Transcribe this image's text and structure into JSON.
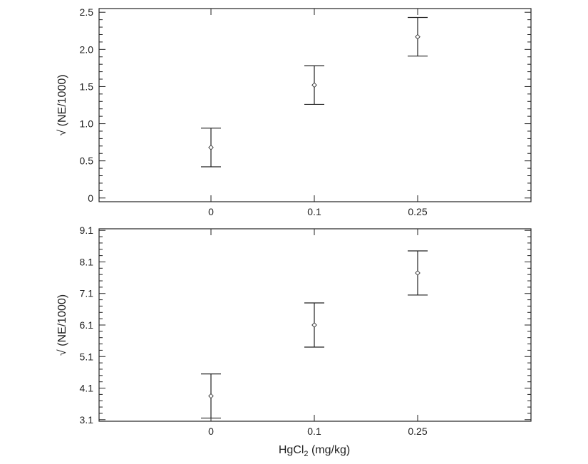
{
  "chart_data": [
    {
      "type": "scatter",
      "error_bars": true,
      "title": "",
      "xlabel": "",
      "ylabel": "√ (NE/1000)",
      "categories": [
        "0",
        "0.1",
        "0.25"
      ],
      "ylim": [
        -0.05,
        2.55
      ],
      "yticks": [
        "0",
        "0.5",
        "1.0",
        "1.5",
        "2.0",
        "2.5"
      ],
      "ytick_values": [
        0,
        0.5,
        1.0,
        1.5,
        2.0,
        2.5
      ],
      "series": [
        {
          "values": [
            0.68,
            1.52,
            2.17
          ],
          "lower": [
            0.42,
            1.26,
            1.91
          ],
          "upper": [
            0.94,
            1.78,
            2.43
          ]
        }
      ],
      "grid": false,
      "legend": "none"
    },
    {
      "type": "scatter",
      "error_bars": true,
      "title": "",
      "xlabel": "",
      "ylabel": "√ (NE/1000)",
      "categories": [
        "0",
        "0.1",
        "0.25"
      ],
      "ylim": [
        3.05,
        9.15
      ],
      "yticks": [
        "3.1",
        "4.1",
        "5.1",
        "6.1",
        "7.1",
        "8.1",
        "9.1"
      ],
      "ytick_values": [
        3.1,
        4.1,
        5.1,
        6.1,
        7.1,
        8.1,
        9.1
      ],
      "series": [
        {
          "values": [
            3.85,
            6.1,
            7.75
          ],
          "lower": [
            3.15,
            5.4,
            7.05
          ],
          "upper": [
            4.55,
            6.8,
            8.45
          ]
        }
      ],
      "grid": false,
      "legend": "none"
    }
  ],
  "shared": {
    "xlabel_main": "HgCl",
    "xlabel_subscript": "2",
    "xlabel_unit": " (mg/kg)"
  }
}
